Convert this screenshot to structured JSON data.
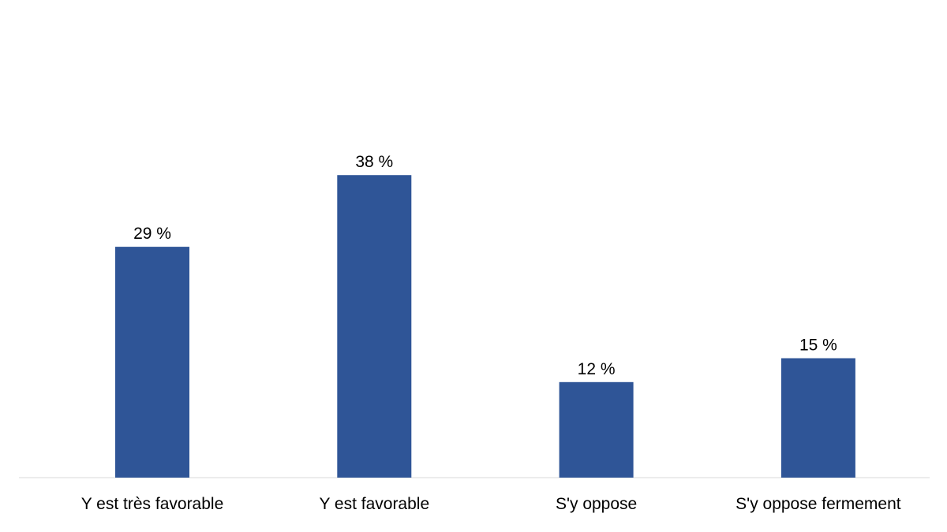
{
  "chart_data": {
    "type": "bar",
    "categories": [
      "Y est très favorable",
      "Y est favorable",
      "S'y oppose",
      "S'y oppose fermement"
    ],
    "values": [
      29,
      38,
      12,
      15
    ],
    "data_labels": [
      "29 %",
      "38 %",
      "12 %",
      "15 %"
    ],
    "title": "",
    "xlabel": "",
    "ylabel": "",
    "ylim": [
      0,
      50
    ],
    "grid": false,
    "legend": "none",
    "bar_color": "#2f5597",
    "axis_color": "#d9d9d9"
  }
}
